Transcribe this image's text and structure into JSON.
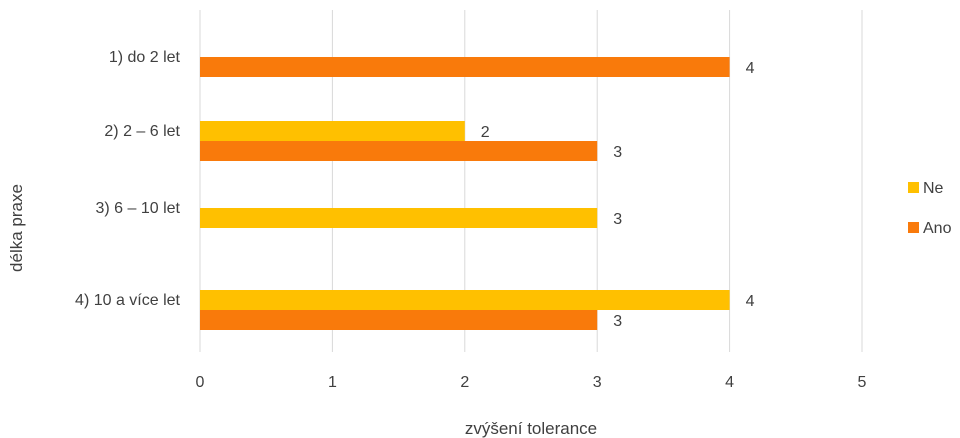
{
  "chart_data": {
    "type": "bar",
    "orientation": "horizontal",
    "categories": [
      "1) do 2 let",
      "2) 2 – 6 let",
      "3) 6 – 10 let",
      "4) 10 a více let"
    ],
    "series": [
      {
        "name": "Ne",
        "color": "#FFC000",
        "values": [
          null,
          2,
          3,
          4
        ]
      },
      {
        "name": "Ano",
        "color": "#F97A0B",
        "values": [
          4,
          3,
          null,
          3
        ]
      }
    ],
    "xlabel": "zvýšení tolerance",
    "ylabel": "délka praxe",
    "xlim": [
      0,
      5
    ],
    "xticks": [
      "0",
      "1",
      "2",
      "3",
      "4",
      "5"
    ],
    "grid": true,
    "legend_position": "right",
    "data_labels": true
  }
}
